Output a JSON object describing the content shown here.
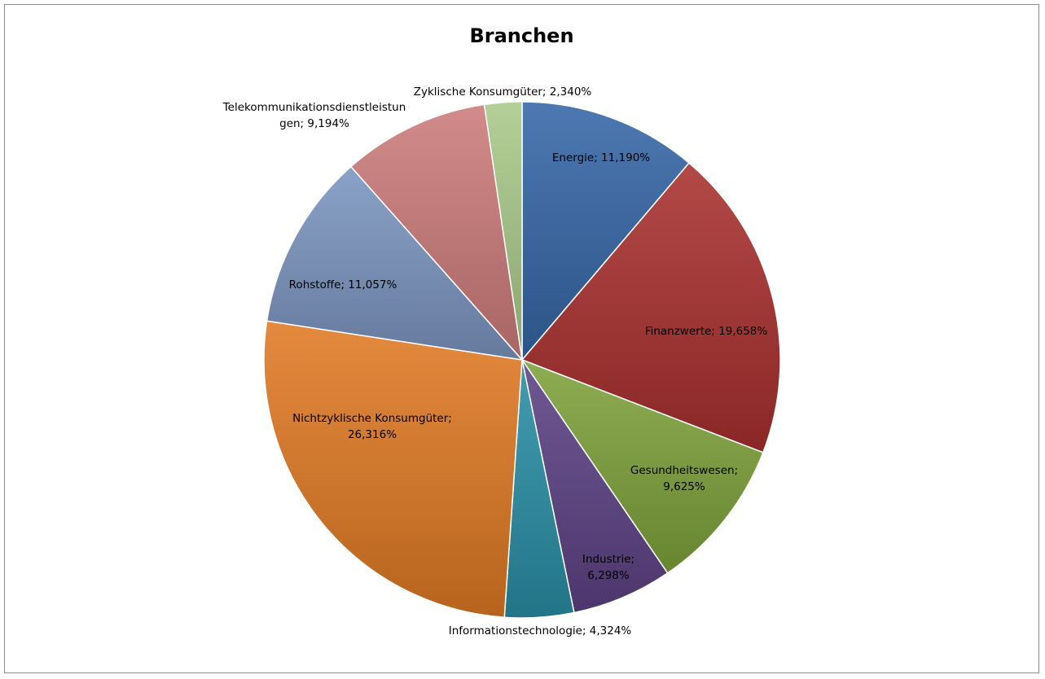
{
  "chart_data": {
    "type": "pie",
    "title": "Branchen",
    "legend": "none",
    "slices": [
      {
        "name": "Energie",
        "value": 11.19,
        "label_lines": [
          "Energie; 11,190%"
        ],
        "color": "#3566a6"
      },
      {
        "name": "Finanzwerte",
        "value": 19.658,
        "label_lines": [
          "Finanzwerte; 19,658%"
        ],
        "color": "#a8302e"
      },
      {
        "name": "Gesundheitswesen",
        "value": 9.625,
        "label_lines": [
          "Gesundheitswesen;",
          "9,625%"
        ],
        "color": "#7fa23a"
      },
      {
        "name": "Industrie",
        "value": 6.298,
        "label_lines": [
          "Industrie;",
          "6,298%"
        ],
        "color": "#5d4284"
      },
      {
        "name": "Informationstechnologie",
        "value": 4.324,
        "label_lines": [
          "Informationstechnologie; 4,324%"
        ],
        "color": "#2a8fa5"
      },
      {
        "name": "Nichtzyklische Konsumgüter",
        "value": 26.316,
        "label_lines": [
          "Nichtzyklische Konsumgüter;",
          "26,316%"
        ],
        "color": "#e07a24"
      },
      {
        "name": "Rohstoffe",
        "value": 11.057,
        "label_lines": [
          "Rohstoffe; 11,057%"
        ],
        "color": "#7b95c0"
      },
      {
        "name": "Telekommunikationsdienstleistungen",
        "value": 9.194,
        "label_lines": [
          "Telekommunikationsdienstleistun",
          "gen; 9,194%"
        ],
        "color": "#cc7b7a"
      },
      {
        "name": "Zyklische Konsumgüter",
        "value": 2.34,
        "label_lines": [
          "Zyklische Konsumgüter; 2,340%"
        ],
        "color": "#aac98a"
      }
    ]
  }
}
